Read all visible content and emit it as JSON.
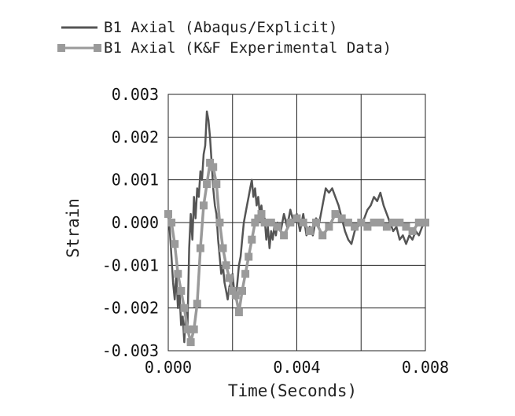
{
  "chart_data": {
    "type": "line",
    "xlabel": "Time(Seconds)",
    "ylabel": "Strain",
    "xlim": [
      0.0,
      0.008
    ],
    "ylim": [
      -0.003,
      0.003
    ],
    "x_ticks": [
      0.0,
      0.002,
      0.004,
      0.006,
      0.008
    ],
    "x_tick_labels": [
      "0.000",
      "",
      "0.004",
      "",
      "0.008"
    ],
    "y_ticks": [
      0.003,
      0.002,
      0.001,
      0.0,
      -0.001,
      -0.002,
      -0.003
    ],
    "y_tick_labels": [
      "0.003",
      "0.002",
      "0.001",
      "0.000",
      "-0.001",
      "-0.002",
      "-0.003"
    ],
    "grid": true,
    "legend_position": "top-left",
    "series": [
      {
        "name": "B1 Axial (Abaqus/Explicit)",
        "color": "#555555",
        "marker": "none",
        "x": [
          0.0,
          5e-05,
          0.0001,
          0.00015,
          0.0002,
          0.00025,
          0.0003,
          0.00035,
          0.0004,
          0.00045,
          0.0005,
          0.00055,
          0.0006,
          0.00065,
          0.0007,
          0.00075,
          0.0008,
          0.00085,
          0.0009,
          0.00095,
          0.001,
          0.00105,
          0.0011,
          0.00115,
          0.0012,
          0.00125,
          0.0013,
          0.00135,
          0.0014,
          0.00145,
          0.0015,
          0.00155,
          0.0016,
          0.00165,
          0.0017,
          0.00175,
          0.0018,
          0.00185,
          0.0019,
          0.00195,
          0.002,
          0.00205,
          0.0021,
          0.00215,
          0.0022,
          0.00225,
          0.0023,
          0.00235,
          0.0024,
          0.00245,
          0.0025,
          0.00255,
          0.0026,
          0.00265,
          0.0027,
          0.00275,
          0.0028,
          0.00285,
          0.0029,
          0.00295,
          0.003,
          0.00305,
          0.0031,
          0.00315,
          0.0032,
          0.00325,
          0.0033,
          0.00335,
          0.0034,
          0.0035,
          0.0036,
          0.0037,
          0.0038,
          0.0039,
          0.004,
          0.0041,
          0.0042,
          0.0043,
          0.0044,
          0.0045,
          0.0046,
          0.0047,
          0.0048,
          0.0049,
          0.005,
          0.0051,
          0.0052,
          0.0053,
          0.0054,
          0.0055,
          0.0056,
          0.0057,
          0.0058,
          0.0059,
          0.006,
          0.0061,
          0.0062,
          0.0063,
          0.0064,
          0.0065,
          0.0066,
          0.0067,
          0.0068,
          0.0069,
          0.007,
          0.0071,
          0.0072,
          0.0073,
          0.0074,
          0.0075,
          0.0076,
          0.0077,
          0.0078,
          0.0079,
          0.008
        ],
        "y": [
          0.0002,
          -0.0002,
          -0.0008,
          -0.0014,
          -0.0018,
          -0.0012,
          -0.002,
          -0.0016,
          -0.0024,
          -0.0022,
          -0.0028,
          -0.002,
          -0.0024,
          -0.0006,
          0.0002,
          -0.0004,
          0.0006,
          0.0001,
          0.0008,
          0.0006,
          0.0012,
          0.001,
          0.0016,
          0.0018,
          0.0026,
          0.0024,
          0.002,
          0.0014,
          0.0008,
          0.0004,
          0.0002,
          -0.0004,
          -0.0008,
          -0.0012,
          -0.001,
          -0.0014,
          -0.0016,
          -0.0018,
          -0.0015,
          -0.0014,
          -0.0012,
          -0.0016,
          -0.0018,
          -0.0014,
          -0.001,
          -0.0008,
          -0.0004,
          0.0,
          0.0002,
          0.0004,
          0.0006,
          0.0008,
          0.001,
          0.0006,
          0.0008,
          0.0004,
          0.0006,
          0.0002,
          0.0004,
          0.0,
          0.0001,
          -0.0004,
          -0.0001,
          -0.0006,
          -0.0002,
          -0.0004,
          -0.0001,
          -0.0003,
          0.0,
          -0.0002,
          0.0002,
          -0.0001,
          0.0003,
          0.0,
          0.0002,
          -0.0002,
          0.0002,
          -0.0003,
          -0.0001,
          -0.0003,
          0.0001,
          0.0,
          0.0004,
          0.0008,
          0.0007,
          0.0008,
          0.0006,
          0.0004,
          0.0001,
          -0.0002,
          -0.0004,
          -0.0005,
          -0.0002,
          -0.0001,
          0.0,
          0.0001,
          0.0003,
          0.0004,
          0.0006,
          0.0005,
          0.0007,
          0.0004,
          0.0002,
          0.0,
          -0.0002,
          -0.0001,
          -0.0004,
          -0.0003,
          -0.0005,
          -0.0003,
          -0.0004,
          -0.0002,
          -0.0003,
          -0.0001,
          0.0
        ]
      },
      {
        "name": "B1 Axial (K&F Experimental Data)",
        "color": "#9a9a9a",
        "marker": "square",
        "x": [
          0.0,
          0.0001,
          0.0002,
          0.0003,
          0.0004,
          0.0005,
          0.0006,
          0.0007,
          0.0008,
          0.0009,
          0.001,
          0.0011,
          0.0012,
          0.0013,
          0.0014,
          0.0015,
          0.0016,
          0.0017,
          0.0018,
          0.0019,
          0.002,
          0.0021,
          0.0022,
          0.0023,
          0.0024,
          0.0025,
          0.0026,
          0.0027,
          0.0028,
          0.0029,
          0.003,
          0.0032,
          0.0034,
          0.0036,
          0.0038,
          0.004,
          0.0042,
          0.0044,
          0.0046,
          0.0048,
          0.005,
          0.0052,
          0.0054,
          0.0056,
          0.0058,
          0.006,
          0.0062,
          0.0064,
          0.0066,
          0.0068,
          0.007,
          0.0072,
          0.0074,
          0.0076,
          0.0078,
          0.008
        ],
        "y": [
          0.0002,
          0.0,
          -0.0005,
          -0.0012,
          -0.0016,
          -0.002,
          -0.0025,
          -0.0028,
          -0.0025,
          -0.0019,
          -0.0006,
          0.0004,
          0.0009,
          0.0014,
          0.0013,
          0.0009,
          0.0,
          -0.0006,
          -0.001,
          -0.0013,
          -0.0016,
          -0.0017,
          -0.0021,
          -0.0016,
          -0.0012,
          -0.0008,
          -0.0004,
          0.0,
          0.0001,
          0.0002,
          0.0,
          0.0,
          -0.0001,
          -0.0003,
          0.0,
          0.0001,
          0.0,
          -0.0002,
          0.0,
          -0.0003,
          -0.0001,
          0.0002,
          0.0001,
          0.0,
          -0.0001,
          0.0,
          -0.0001,
          0.0,
          0.0,
          -0.0001,
          0.0,
          0.0,
          -0.0001,
          -0.0002,
          0.0,
          0.0
        ]
      }
    ]
  }
}
